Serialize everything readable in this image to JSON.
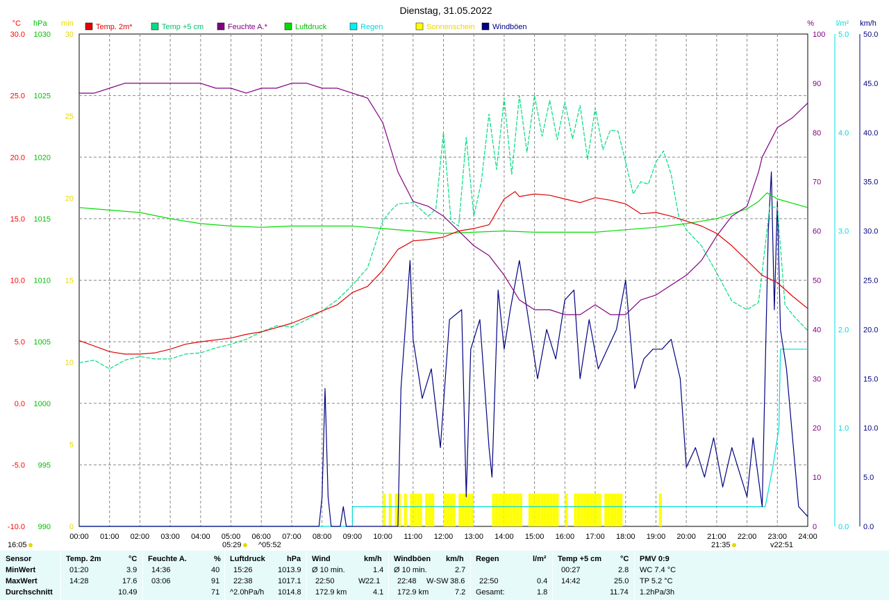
{
  "chart_data": {
    "type": "line",
    "title": "Dienstag, 31.05.2022",
    "x_ticks": [
      "00:00",
      "01:00",
      "02:00",
      "03:00",
      "04:00",
      "05:00",
      "06:00",
      "07:00",
      "08:00",
      "09:00",
      "10:00",
      "11:00",
      "12:00",
      "13:00",
      "14:00",
      "15:00",
      "16:00",
      "17:00",
      "18:00",
      "19:00",
      "20:00",
      "21:00",
      "22:00",
      "23:00",
      "24:00"
    ],
    "xlim": [
      0,
      24
    ],
    "axes": {
      "temp": {
        "unit": "°C",
        "ticks": [
          "30.0",
          "25.0",
          "20.0",
          "15.0",
          "10.0",
          "5.0",
          "0.0",
          "-5.0",
          "-10.0"
        ],
        "range": [
          -10,
          30
        ],
        "color": "#ff0000"
      },
      "pressure": {
        "unit": "hPa",
        "ticks": [
          "1030",
          "1025",
          "1020",
          "1015",
          "1010",
          "1005",
          "1000",
          "995",
          "990"
        ],
        "range": [
          990,
          1030
        ],
        "color": "#00c000"
      },
      "sunshine": {
        "unit": "min",
        "ticks": [
          "30",
          "25",
          "20",
          "15",
          "10",
          "5",
          "0"
        ],
        "range": [
          0,
          30
        ],
        "color": "#e6d800"
      },
      "humidity": {
        "unit": "%",
        "ticks": [
          "100",
          "90",
          "80",
          "70",
          "60",
          "50",
          "40",
          "30",
          "20",
          "10",
          "0"
        ],
        "range": [
          0,
          100
        ],
        "color": "#800080"
      },
      "rain": {
        "unit": "l/m²",
        "ticks": [
          "5.0",
          "4.0",
          "3.0",
          "2.0",
          "1.0",
          "0.0"
        ],
        "range": [
          0,
          5
        ],
        "color": "#00dcdc"
      },
      "wind": {
        "unit": "km/h",
        "ticks": [
          "50.0",
          "45.0",
          "40.0",
          "35.0",
          "30.0",
          "25.0",
          "20.0",
          "15.0",
          "10.0",
          "5.0",
          "0.0"
        ],
        "range": [
          0,
          50
        ],
        "color": "#000080"
      }
    },
    "legend": [
      "Temp. 2m*",
      "Temp +5 cm",
      "Feuchte A.*",
      "Luftdruck",
      "Regen",
      "Sonnenschein",
      "Windböen"
    ],
    "series": [
      {
        "name": "Temp. 2m*",
        "axis": "temp",
        "color": "#e00000",
        "x": [
          0,
          1,
          1.5,
          2,
          2.5,
          3,
          3.5,
          4,
          5,
          5.5,
          6,
          7,
          8,
          8.5,
          9,
          9.5,
          10,
          10.5,
          11,
          11.5,
          12,
          12.5,
          13,
          13.5,
          14,
          14.36,
          14.5,
          15,
          15.5,
          16,
          16.5,
          17,
          17.5,
          18,
          18.5,
          19,
          19.5,
          20,
          20.5,
          21,
          21.5,
          22,
          22.5,
          23,
          23.5,
          24
        ],
        "y": [
          5.1,
          4.2,
          4.0,
          4.0,
          4.1,
          4.4,
          4.8,
          5.0,
          5.3,
          5.6,
          5.8,
          6.5,
          7.5,
          8.0,
          9.0,
          9.5,
          10.8,
          12.5,
          13.2,
          13.3,
          13.5,
          14.0,
          14.2,
          14.5,
          16.6,
          17.2,
          16.8,
          17.0,
          16.9,
          16.6,
          16.3,
          16.7,
          16.5,
          16.2,
          15.4,
          15.5,
          15.2,
          14.8,
          14.4,
          13.8,
          12.8,
          11.6,
          10.4,
          9.8,
          8.7,
          7.7
        ]
      },
      {
        "name": "Temp +5 cm",
        "axis": "temp",
        "color": "#00dc80",
        "x": [
          0,
          0.5,
          1,
          1.5,
          2,
          2.5,
          3,
          3.5,
          4,
          4.5,
          5,
          5.5,
          6,
          6.5,
          7,
          7.5,
          8,
          8.5,
          9,
          9.5,
          10,
          10.25,
          10.5,
          11,
          11.5,
          11.75,
          12,
          12.25,
          12.5,
          12.75,
          13,
          13.25,
          13.5,
          13.75,
          14,
          14.25,
          14.5,
          14.75,
          15,
          15.25,
          15.5,
          15.75,
          16,
          16.25,
          16.5,
          16.75,
          17,
          17.25,
          17.5,
          17.75,
          18,
          18.25,
          18.5,
          18.75,
          19,
          19.25,
          19.5,
          19.75,
          20,
          20.5,
          21,
          21.5,
          22,
          22.38,
          22.75,
          23,
          23.25,
          23.5,
          24
        ],
        "y": [
          3.3,
          3.5,
          2.8,
          3.5,
          3.8,
          3.6,
          3.6,
          4.0,
          4.1,
          4.5,
          4.8,
          5.2,
          5.8,
          6.3,
          6.2,
          6.8,
          7.5,
          8.4,
          9.6,
          11.0,
          14.8,
          15.6,
          16.2,
          16.3,
          15.2,
          15.8,
          22.0,
          14.8,
          14.4,
          21.6,
          15.2,
          18.0,
          23.5,
          19.0,
          24.8,
          18.6,
          25.0,
          20.4,
          25.0,
          21.7,
          24.6,
          21.4,
          24.5,
          21.5,
          24.2,
          19.8,
          24.0,
          20.6,
          22.2,
          22.1,
          19.6,
          17.0,
          18.0,
          17.8,
          19.6,
          20.5,
          18.6,
          15.2,
          14.1,
          12.8,
          10.6,
          8.3,
          7.6,
          8.2,
          16.0,
          15.9,
          8.0,
          7.2,
          5.9
        ]
      },
      {
        "name": "Feuchte A.*",
        "axis": "humidity",
        "color": "#800080",
        "x": [
          0,
          0.5,
          1,
          1.5,
          2,
          2.5,
          3,
          3.06,
          4,
          4.5,
          5,
          5.5,
          6,
          6.5,
          7,
          7.5,
          8,
          8.5,
          9,
          9.5,
          10,
          10.5,
          11,
          11.5,
          12,
          12.5,
          13,
          13.5,
          14,
          14.5,
          15,
          15.5,
          16,
          16.5,
          17,
          17.5,
          18,
          18.5,
          19,
          19.5,
          20,
          20.5,
          21,
          21.5,
          22,
          22.38,
          22.5,
          23,
          23.5,
          24
        ],
        "y": [
          88,
          88,
          89,
          90,
          90,
          90,
          90,
          90,
          90,
          89,
          89,
          88,
          89,
          89,
          90,
          90,
          89,
          89,
          88,
          87,
          82,
          72,
          66,
          65,
          63,
          60,
          57,
          55,
          51,
          46,
          44,
          44,
          43,
          43,
          45,
          43,
          43,
          46,
          47,
          49,
          51,
          54,
          59,
          63,
          65,
          72,
          75,
          81,
          83,
          86
        ]
      },
      {
        "name": "Luftdruck",
        "axis": "pressure",
        "color": "#00dc00",
        "x": [
          0,
          1,
          2,
          3,
          4,
          5,
          6,
          7,
          8,
          9,
          10,
          11,
          12,
          13,
          14,
          15,
          15.26,
          16,
          17,
          18,
          19,
          20,
          21,
          22,
          22.38,
          22.66,
          23,
          24
        ],
        "y": [
          1015.9,
          1015.7,
          1015.5,
          1015.0,
          1014.6,
          1014.4,
          1014.3,
          1014.4,
          1014.4,
          1014.4,
          1014.2,
          1014.0,
          1013.8,
          1013.9,
          1014.0,
          1013.9,
          1013.9,
          1013.9,
          1013.9,
          1014.1,
          1014.3,
          1014.6,
          1015.0,
          1015.8,
          1016.4,
          1017.1,
          1016.6,
          1015.9
        ]
      },
      {
        "name": "Regen",
        "axis": "rain",
        "color": "#00dcdc",
        "x": [
          0,
          9.0,
          9.0,
          22.5,
          22.6,
          22.85,
          23.05,
          23.1,
          24
        ],
        "y": [
          0,
          0,
          0.2,
          0.2,
          0.2,
          0.6,
          1.0,
          1.8,
          1.8
        ]
      },
      {
        "name": "Windböen",
        "axis": "wind",
        "color": "#000080",
        "x": [
          0,
          7.9,
          8.0,
          8.1,
          8.2,
          8.3,
          8.6,
          8.7,
          8.8,
          9.0,
          10.5,
          10.6,
          10.9,
          11.0,
          11.3,
          11.6,
          11.9,
          12.2,
          12.6,
          12.75,
          12.9,
          13.2,
          13.5,
          13.6,
          13.8,
          14.0,
          14.2,
          14.5,
          14.8,
          15.1,
          15.4,
          15.7,
          16.0,
          16.3,
          16.5,
          16.8,
          17.1,
          17.4,
          17.7,
          18.0,
          18.3,
          18.6,
          18.9,
          19.2,
          19.5,
          19.8,
          20.0,
          20.3,
          20.6,
          20.9,
          21.2,
          21.5,
          21.8,
          22.0,
          22.2,
          22.5,
          22.7,
          22.8,
          22.9,
          23.0,
          23.1,
          23.3,
          23.5,
          23.7,
          24.0
        ],
        "y": [
          0,
          0,
          3,
          14,
          3,
          0,
          0,
          2,
          0,
          0,
          0,
          14,
          27,
          19,
          13,
          16,
          8,
          21,
          22,
          3,
          18,
          21,
          8,
          5,
          24,
          18,
          22,
          27,
          21,
          15,
          20,
          17,
          23,
          24,
          15,
          21,
          16,
          18,
          20,
          25,
          14,
          17,
          18,
          18,
          19,
          15,
          6,
          8,
          5,
          9,
          4,
          8,
          5,
          3,
          9,
          2,
          30,
          36,
          22,
          33,
          20,
          16,
          9,
          2,
          1
        ]
      }
    ],
    "sunshine_hours": [
      10.0,
      10.2,
      10.4,
      10.5,
      10.7,
      10.9,
      11.0,
      11.1,
      11.2,
      11.4,
      11.5,
      11.6,
      12.0,
      12.1,
      12.2,
      12.3,
      12.5,
      12.6,
      12.7,
      12.8,
      12.9,
      13.6,
      13.7,
      13.8,
      13.9,
      14.0,
      14.1,
      14.2,
      14.3,
      14.4,
      14.5,
      14.8,
      14.9,
      15.0,
      15.1,
      15.2,
      15.3,
      15.4,
      15.5,
      15.6,
      15.7,
      16.0,
      16.3,
      16.4,
      16.5,
      16.6,
      16.7,
      16.8,
      16.9,
      17.0,
      17.1,
      17.3,
      17.4,
      17.5,
      17.6,
      17.7,
      17.8,
      19.1
    ],
    "markers": {
      "sunrise": "05:29",
      "transit": "05:52",
      "sunset": "21:35",
      "moon": "22:51",
      "sun_minutes": "16:05"
    }
  },
  "stats": {
    "headers": {
      "sensor": "Sensor",
      "temp2m": "Temp. 2m",
      "temp2m_unit": "°C",
      "feuchte": "Feuchte A.",
      "feuchte_unit": "%",
      "luftdruck": "Luftdruck",
      "luftdruck_unit": "hPa",
      "wind": "Wind",
      "wind_unit": "km/h",
      "windboeen": "Windböen",
      "windboeen_unit": "km/h",
      "regen": "Regen",
      "regen_unit": "l/m²",
      "temp5": "Temp +5 cm",
      "temp5_unit": "°C",
      "pmv": "PMV 0:9"
    },
    "row_labels": {
      "min": "MinWert",
      "max": "MaxWert",
      "avg": "Durchschnitt"
    },
    "temp2m": {
      "min_time": "01:20",
      "min": "3.9",
      "max_time": "14:28",
      "max": "17.6",
      "avg": "10.49"
    },
    "feuchte": {
      "min_time": "14:36",
      "min": "40",
      "max_time": "03:06",
      "max": "91",
      "avg": "71"
    },
    "luftdruck": {
      "min_time": "15:26",
      "min": "1013.9",
      "max_time": "22:38",
      "max": "1017.1",
      "trend": "^2.0hPa/h",
      "avg": "1014.8"
    },
    "wind": {
      "min_label": "Ø 10 min.",
      "min": "1.4",
      "max_time": "22:50",
      "max_dir": "W",
      "max": "22.1",
      "distance": "172.9 km",
      "avg": "4.1"
    },
    "windboeen": {
      "min_label": "Ø 10 min.",
      "min": "2.7",
      "max_time": "22:48",
      "max_dir": "W-SW",
      "max": "38.6",
      "distance": "172.9 km",
      "avg": "7.2"
    },
    "regen": {
      "max_time": "22:50",
      "max": "0.4",
      "total_label": "Gesamt:",
      "total": "1.8"
    },
    "temp5": {
      "min_time": "00:27",
      "min": "2.8",
      "max_time": "14:42",
      "max": "25.0",
      "avg": "11.74"
    },
    "pmv": {
      "wc": "WC 7.4 °C",
      "tp": "TP 5.2 °C",
      "pressure_trend": "1.2hPa/3h"
    }
  }
}
